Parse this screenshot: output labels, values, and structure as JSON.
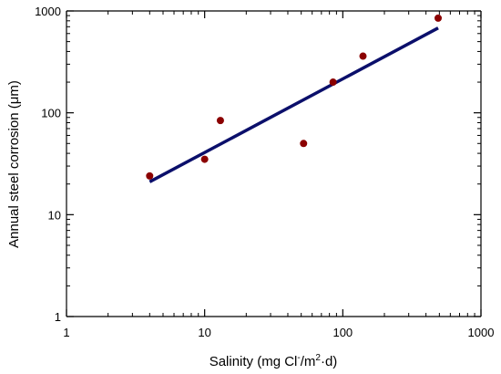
{
  "chart_data": {
    "type": "scatter",
    "xlabel": {
      "prefix": "Salinity (mg Cl",
      "sup1": "-",
      "middle": "/m",
      "sup2": "2",
      "suffix": "·d)"
    },
    "ylabel": "Annual steel corrosion (μm)",
    "xscale": "log",
    "yscale": "log",
    "xlim": [
      1,
      1000
    ],
    "ylim": [
      1,
      1000
    ],
    "x_ticks": [
      {
        "value": 1,
        "label": "1"
      },
      {
        "value": 10,
        "label": "10"
      },
      {
        "value": 100,
        "label": "100"
      },
      {
        "value": 1000,
        "label": "1000"
      }
    ],
    "y_ticks": [
      {
        "value": 1,
        "label": "1"
      },
      {
        "value": 10,
        "label": "10"
      },
      {
        "value": 100,
        "label": "100"
      },
      {
        "value": 1000,
        "label": "1000"
      }
    ],
    "grid": false,
    "series": [
      {
        "kind": "points",
        "color": "#8b0000",
        "x": [
          4,
          10,
          13,
          52,
          85,
          140,
          490
        ],
        "y": [
          24,
          35,
          84,
          50,
          200,
          360,
          850
        ]
      },
      {
        "kind": "fit-line",
        "color": "#0b0f6b",
        "x": [
          4,
          490
        ],
        "y": [
          21,
          680
        ]
      }
    ]
  }
}
